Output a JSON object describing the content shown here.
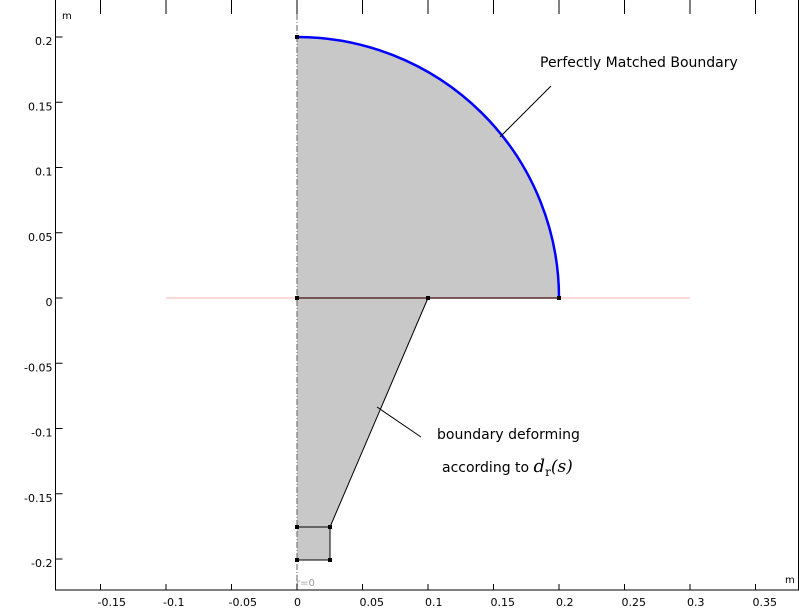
{
  "x_ticks": [
    "-0.15",
    "-0.1",
    "-0.05",
    "0",
    "0.05",
    "0.1",
    "0.15",
    "0.2",
    "0.25",
    "0.3",
    "0.35"
  ],
  "x_tick_values": [
    -0.15,
    -0.1,
    -0.05,
    0,
    0.05,
    0.1,
    0.15,
    0.2,
    0.25,
    0.3,
    0.35
  ],
  "y_ticks": [
    "0.2",
    "0.15",
    "0.1",
    "0.05",
    "0",
    "-0.05",
    "-0.1",
    "-0.15",
    "-0.2"
  ],
  "y_tick_values": [
    0.2,
    0.15,
    0.1,
    0.05,
    0,
    -0.05,
    -0.1,
    -0.15,
    -0.2
  ],
  "x_unit": "m",
  "y_unit": "m",
  "axis_label": "r=0",
  "annotations": {
    "pml": "Perfectly Matched Boundary",
    "deform_line1": "boundary deforming",
    "deform_line2_prefix": "according to ",
    "deform_math_d": "d",
    "deform_math_sub": "r",
    "deform_math_arg": "(s)"
  },
  "colors": {
    "domain_fill": "#c8c8c8",
    "pml_boundary": "#0000ff",
    "symmetry_line": "#ffb0b0",
    "edge": "#000000"
  }
}
